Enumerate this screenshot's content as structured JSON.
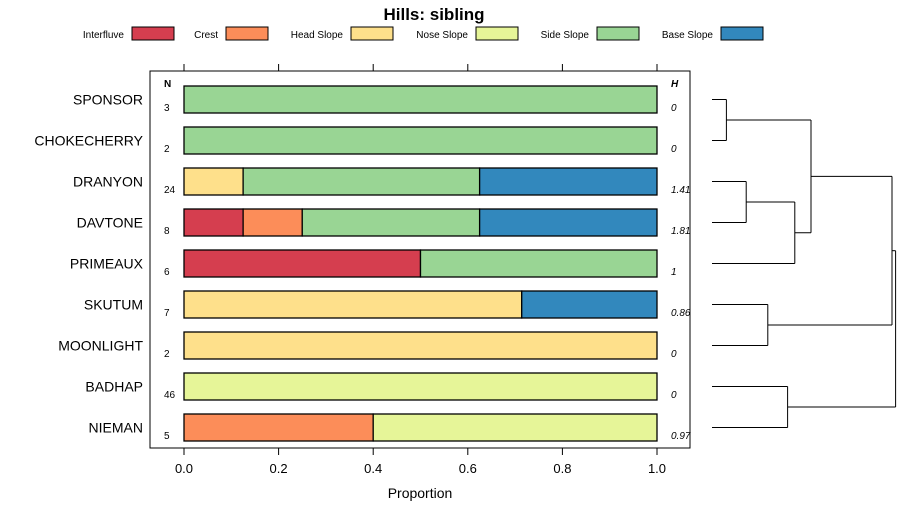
{
  "chart_data": {
    "type": "bar",
    "orientation": "horizontal-stacked",
    "title": "Hills: sibling",
    "xlabel": "Proportion",
    "ylabel": "",
    "xlim": [
      -0.07,
      1.07
    ],
    "x_ticks": [
      0.0,
      0.2,
      0.4,
      0.6,
      0.8,
      1.0
    ],
    "x_tick_labels": [
      "0.0",
      "0.2",
      "0.4",
      "0.6",
      "0.8",
      "1.0"
    ],
    "grid": false,
    "legend_position": "top",
    "n_header": "N",
    "h_header": "H",
    "legend": [
      {
        "name": "Interfluve",
        "color": "#d53e4f"
      },
      {
        "name": "Crest",
        "color": "#fc8d59"
      },
      {
        "name": "Head Slope",
        "color": "#fee08b"
      },
      {
        "name": "Nose Slope",
        "color": "#e6f598"
      },
      {
        "name": "Side Slope",
        "color": "#99d594"
      },
      {
        "name": "Base Slope",
        "color": "#3288bd"
      }
    ],
    "categories": [
      "SPONSOR",
      "CHOKECHERRY",
      "DRANYON",
      "DAVTONE",
      "PRIMEAUX",
      "SKUTUM",
      "MOONLIGHT",
      "BADHAP",
      "NIEMAN"
    ],
    "n_values": [
      "3",
      "2",
      "24",
      "8",
      "6",
      "7",
      "2",
      "46",
      "5"
    ],
    "h_values": [
      "0",
      "0",
      "1.41",
      "1.81",
      "1",
      "0.86",
      "0",
      "0",
      "0.97"
    ],
    "series": [
      {
        "name": "Interfluve",
        "values": [
          0,
          0,
          0,
          0.125,
          0.5,
          0,
          0,
          0,
          0
        ]
      },
      {
        "name": "Crest",
        "values": [
          0,
          0,
          0,
          0.125,
          0,
          0,
          0,
          0,
          0.4
        ]
      },
      {
        "name": "Head Slope",
        "values": [
          0,
          0,
          0.125,
          0,
          0,
          0.714,
          1,
          0,
          0
        ]
      },
      {
        "name": "Nose Slope",
        "values": [
          0,
          0,
          0,
          0,
          0,
          0,
          0,
          1,
          0.6
        ]
      },
      {
        "name": "Side Slope",
        "values": [
          1,
          1,
          0.5,
          0.375,
          0.5,
          0,
          0,
          0,
          0
        ]
      },
      {
        "name": "Base Slope",
        "values": [
          0,
          0,
          0.375,
          0.375,
          0,
          0.286,
          0,
          0,
          0
        ]
      }
    ],
    "dendrogram": {
      "leaves": [
        "SPONSOR",
        "CHOKECHERRY",
        "DRANYON",
        "DAVTONE",
        "PRIMEAUX",
        "SKUTUM",
        "MOONLIGHT",
        "BADHAP",
        "NIEMAN"
      ],
      "merges": [
        {
          "a": "L0",
          "b": "L1",
          "height": 0.08
        },
        {
          "a": "L2",
          "b": "L3",
          "height": 0.19
        },
        {
          "a": "N1",
          "b": "L4",
          "height": 0.46
        },
        {
          "a": "N0",
          "b": "N2",
          "height": 0.55
        },
        {
          "a": "L5",
          "b": "L6",
          "height": 0.31
        },
        {
          "a": "L7",
          "b": "L8",
          "height": 0.42
        },
        {
          "a": "N4",
          "b": "N3",
          "height": 1.0
        },
        {
          "a": "N5",
          "b": "N6",
          "height": 1.02
        }
      ]
    }
  }
}
